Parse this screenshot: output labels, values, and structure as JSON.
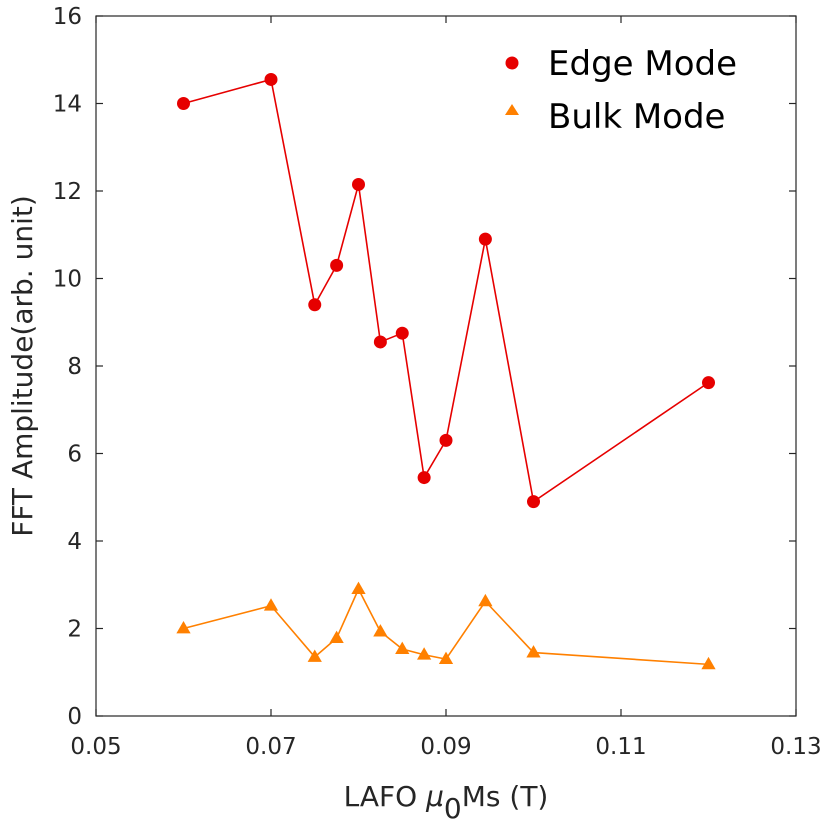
{
  "chart_data": {
    "type": "line",
    "xlabel": {
      "prefix": "LAFO ",
      "mu": "μ",
      "sub": "0",
      "suffix": "Ms (T)"
    },
    "ylabel": "FFT Amplitude(arb. unit)",
    "xlim": [
      0.05,
      0.13
    ],
    "ylim": [
      0,
      16
    ],
    "xticks": [
      0.05,
      0.07,
      0.09,
      0.11,
      0.13
    ],
    "xtick_labels": [
      "0.05",
      "0.07",
      "0.09",
      "0.11",
      "0.13"
    ],
    "yticks": [
      0,
      2,
      4,
      6,
      8,
      10,
      12,
      14,
      16
    ],
    "ytick_labels": [
      "0",
      "2",
      "4",
      "6",
      "8",
      "10",
      "12",
      "14",
      "16"
    ],
    "grid": false,
    "legend_position": "top-right",
    "x": [
      0.06,
      0.07,
      0.075,
      0.0775,
      0.08,
      0.0825,
      0.085,
      0.0875,
      0.09,
      0.0945,
      0.1,
      0.12
    ],
    "series": [
      {
        "name": "Edge Mode",
        "color": "#e60000",
        "marker": "circle",
        "values": [
          14.0,
          14.55,
          9.4,
          10.3,
          12.15,
          8.55,
          8.75,
          5.45,
          6.3,
          10.9,
          4.9,
          7.62
        ]
      },
      {
        "name": "Bulk Mode",
        "color": "#ff8000",
        "marker": "triangle",
        "values": [
          2.0,
          2.52,
          1.35,
          1.78,
          2.9,
          1.93,
          1.53,
          1.4,
          1.3,
          2.62,
          1.45,
          1.18
        ]
      }
    ]
  }
}
